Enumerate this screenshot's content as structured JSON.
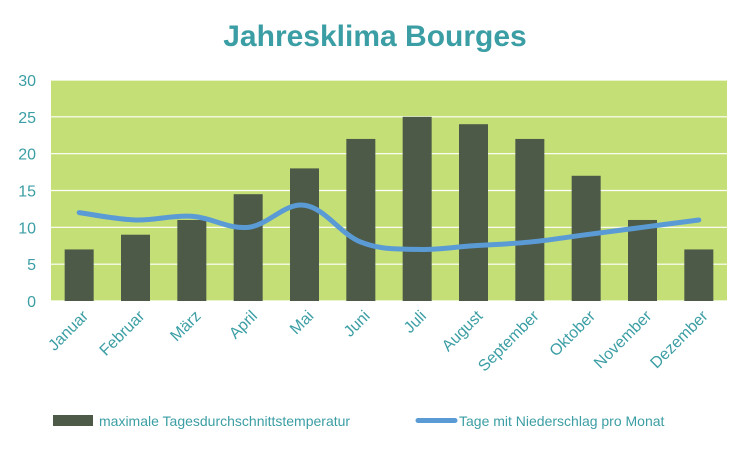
{
  "chart_data": {
    "type": "bar",
    "title": "Jahresklima Bourges",
    "categories": [
      "Januar",
      "Februar",
      "März",
      "April",
      "Mai",
      "Juni",
      "Juli",
      "August",
      "September",
      "Oktober",
      "November",
      "Dezember"
    ],
    "series": [
      {
        "name": "maximale Tagesdurchschnittstemperatur",
        "type": "bar",
        "color": "#4d5a48",
        "values": [
          7,
          9,
          11,
          14.5,
          18,
          22,
          25,
          24,
          22,
          17,
          11,
          7
        ]
      },
      {
        "name": "Tage mit Niederschlag pro Monat",
        "type": "line",
        "color": "#5b9bd5",
        "values": [
          12,
          11,
          11.5,
          10,
          13,
          8,
          7,
          7.5,
          8,
          9,
          10,
          11
        ]
      }
    ],
    "ylim": [
      0,
      30
    ],
    "yticks": [
      0,
      5,
      10,
      15,
      20,
      25,
      30
    ],
    "grid": true,
    "legend_position": "bottom",
    "plot_background": "#c5df77",
    "text_color": "#3b9ea4"
  }
}
